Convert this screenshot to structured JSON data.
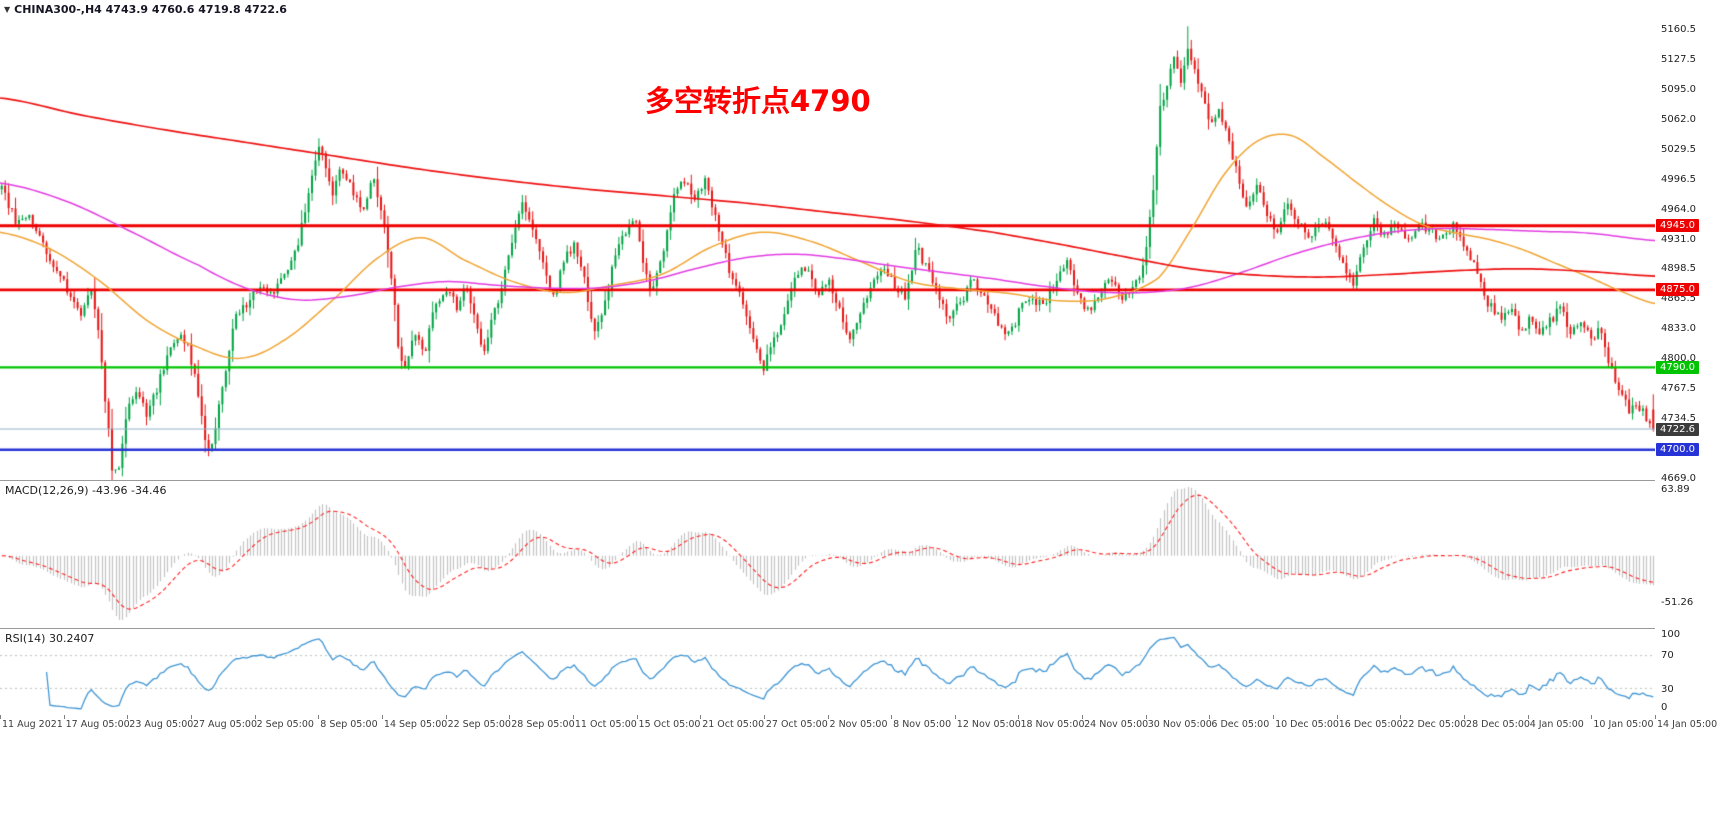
{
  "header": {
    "symbol_info": "CHINA300-,H4 4743.9 4760.6 4719.8 4722.6",
    "collapse_icon": "▼"
  },
  "main": {
    "annotation": {
      "text": "多空转折点4790",
      "color": "#ff0000"
    }
  },
  "macd": {
    "label": "MACD(12,26,9) -43.96 -34.46",
    "axis_ticks": [
      "63.89",
      "-51.26"
    ]
  },
  "rsi": {
    "label": "RSI(14) 30.2407",
    "axis_ticks": [
      "100",
      "70",
      "30",
      "0"
    ],
    "levels": [
      70,
      30
    ]
  },
  "x_axis": {
    "labels": [
      "11 Aug 2021",
      "17 Aug 05:00",
      "23 Aug 05:00",
      "27 Aug 05:00",
      "2 Sep 05:00",
      "8 Sep 05:00",
      "14 Sep 05:00",
      "22 Sep 05:00",
      "28 Sep 05:00",
      "11 Oct 05:00",
      "15 Oct 05:00",
      "21 Oct 05:00",
      "27 Oct 05:00",
      "2 Nov 05:00",
      "8 Nov 05:00",
      "12 Nov 05:00",
      "18 Nov 05:00",
      "24 Nov 05:00",
      "30 Nov 05:00",
      "6 Dec 05:00",
      "10 Dec 05:00",
      "16 Dec 05:00",
      "22 Dec 05:00",
      "28 Dec 05:00",
      "4 Jan 05:00",
      "10 Jan 05:00",
      "14 Jan 05:00"
    ]
  },
  "chart_data": {
    "type": "candlestick",
    "symbol": "CHINA300-",
    "timeframe": "H4",
    "ohlc_display": {
      "open": 4743.9,
      "high": 4760.6,
      "low": 4719.8,
      "close": 4722.6
    },
    "candle_count": 480,
    "y_axis_ticks": [
      "5160.5",
      "5127.5",
      "5095.0",
      "5062.0",
      "5029.5",
      "4996.5",
      "4964.0",
      "4931.0",
      "4898.5",
      "4865.5",
      "4833.0",
      "4800.0",
      "4767.5",
      "4734.5",
      "4702.0",
      "4669.0"
    ],
    "hlines": [
      {
        "value": 4945.0,
        "label": "4945.0",
        "color": "#ee0000",
        "width": 3.0
      },
      {
        "value": 4875.0,
        "label": "4875.0",
        "color": "#ee0000",
        "width": 2.8
      },
      {
        "value": 4790.0,
        "label": "4790.0",
        "color": "#00c400",
        "width": 2.2
      },
      {
        "value": 4700.0,
        "label": "4700.0",
        "color": "#2633d6",
        "width": 2.4
      }
    ],
    "price_line": {
      "value": 4722.6,
      "label": "4722.6",
      "line_color": "#8fb0c9"
    },
    "price_path": [
      [
        0,
        4985
      ],
      [
        0.008,
        4952
      ],
      [
        0.016,
        4958
      ],
      [
        0.025,
        4922
      ],
      [
        0.034,
        4898
      ],
      [
        0.042,
        4862
      ],
      [
        0.048,
        4850
      ],
      [
        0.054,
        4876
      ],
      [
        0.059,
        4830
      ],
      [
        0.063,
        4750
      ],
      [
        0.067,
        4678
      ],
      [
        0.071,
        4684
      ],
      [
        0.076,
        4748
      ],
      [
        0.082,
        4766
      ],
      [
        0.088,
        4738
      ],
      [
        0.094,
        4768
      ],
      [
        0.101,
        4806
      ],
      [
        0.108,
        4832
      ],
      [
        0.114,
        4806
      ],
      [
        0.119,
        4758
      ],
      [
        0.124,
        4700
      ],
      [
        0.128,
        4712
      ],
      [
        0.134,
        4772
      ],
      [
        0.141,
        4842
      ],
      [
        0.149,
        4862
      ],
      [
        0.157,
        4878
      ],
      [
        0.164,
        4868
      ],
      [
        0.171,
        4892
      ],
      [
        0.179,
        4922
      ],
      [
        0.186,
        4980
      ],
      [
        0.191,
        5032
      ],
      [
        0.195,
        5022
      ],
      [
        0.2,
        4978
      ],
      [
        0.205,
        5008
      ],
      [
        0.211,
        4992
      ],
      [
        0.218,
        4962
      ],
      [
        0.225,
        4995
      ],
      [
        0.232,
        4945
      ],
      [
        0.237,
        4872
      ],
      [
        0.241,
        4802
      ],
      [
        0.245,
        4788
      ],
      [
        0.25,
        4828
      ],
      [
        0.256,
        4806
      ],
      [
        0.262,
        4858
      ],
      [
        0.269,
        4876
      ],
      [
        0.276,
        4856
      ],
      [
        0.282,
        4880
      ],
      [
        0.287,
        4838
      ],
      [
        0.292,
        4802
      ],
      [
        0.297,
        4844
      ],
      [
        0.303,
        4880
      ],
      [
        0.31,
        4938
      ],
      [
        0.316,
        4972
      ],
      [
        0.322,
        4942
      ],
      [
        0.328,
        4902
      ],
      [
        0.334,
        4866
      ],
      [
        0.34,
        4906
      ],
      [
        0.347,
        4926
      ],
      [
        0.353,
        4886
      ],
      [
        0.359,
        4826
      ],
      [
        0.365,
        4856
      ],
      [
        0.371,
        4912
      ],
      [
        0.377,
        4936
      ],
      [
        0.384,
        4950
      ],
      [
        0.389,
        4902
      ],
      [
        0.394,
        4872
      ],
      [
        0.4,
        4912
      ],
      [
        0.407,
        4976
      ],
      [
        0.412,
        5002
      ],
      [
        0.419,
        4972
      ],
      [
        0.426,
        4996
      ],
      [
        0.431,
        4962
      ],
      [
        0.437,
        4922
      ],
      [
        0.443,
        4882
      ],
      [
        0.449,
        4862
      ],
      [
        0.455,
        4822
      ],
      [
        0.461,
        4790
      ],
      [
        0.467,
        4816
      ],
      [
        0.473,
        4840
      ],
      [
        0.48,
        4886
      ],
      [
        0.487,
        4900
      ],
      [
        0.494,
        4872
      ],
      [
        0.501,
        4882
      ],
      [
        0.507,
        4856
      ],
      [
        0.513,
        4816
      ],
      [
        0.519,
        4842
      ],
      [
        0.526,
        4876
      ],
      [
        0.533,
        4900
      ],
      [
        0.54,
        4882
      ],
      [
        0.547,
        4866
      ],
      [
        0.554,
        4920
      ],
      [
        0.561,
        4896
      ],
      [
        0.567,
        4870
      ],
      [
        0.574,
        4842
      ],
      [
        0.581,
        4862
      ],
      [
        0.588,
        4890
      ],
      [
        0.595,
        4866
      ],
      [
        0.602,
        4842
      ],
      [
        0.609,
        4822
      ],
      [
        0.616,
        4850
      ],
      [
        0.623,
        4870
      ],
      [
        0.63,
        4856
      ],
      [
        0.637,
        4880
      ],
      [
        0.644,
        4908
      ],
      [
        0.651,
        4872
      ],
      [
        0.658,
        4852
      ],
      [
        0.665,
        4870
      ],
      [
        0.672,
        4890
      ],
      [
        0.679,
        4866
      ],
      [
        0.686,
        4876
      ],
      [
        0.692,
        4908
      ],
      [
        0.697,
        4978
      ],
      [
        0.701,
        5068
      ],
      [
        0.705,
        5092
      ],
      [
        0.71,
        5132
      ],
      [
        0.714,
        5102
      ],
      [
        0.718,
        5136
      ],
      [
        0.722,
        5120
      ],
      [
        0.727,
        5086
      ],
      [
        0.732,
        5060
      ],
      [
        0.737,
        5076
      ],
      [
        0.742,
        5042
      ],
      [
        0.748,
        5002
      ],
      [
        0.754,
        4966
      ],
      [
        0.76,
        4990
      ],
      [
        0.766,
        4960
      ],
      [
        0.772,
        4936
      ],
      [
        0.778,
        4966
      ],
      [
        0.785,
        4950
      ],
      [
        0.792,
        4930
      ],
      [
        0.799,
        4950
      ],
      [
        0.806,
        4936
      ],
      [
        0.812,
        4906
      ],
      [
        0.818,
        4882
      ],
      [
        0.824,
        4920
      ],
      [
        0.83,
        4950
      ],
      [
        0.837,
        4936
      ],
      [
        0.844,
        4950
      ],
      [
        0.851,
        4930
      ],
      [
        0.858,
        4946
      ],
      [
        0.865,
        4940
      ],
      [
        0.872,
        4930
      ],
      [
        0.879,
        4944
      ],
      [
        0.886,
        4924
      ],
      [
        0.893,
        4896
      ],
      [
        0.9,
        4860
      ],
      [
        0.907,
        4846
      ],
      [
        0.914,
        4856
      ],
      [
        0.92,
        4830
      ],
      [
        0.926,
        4846
      ],
      [
        0.932,
        4826
      ],
      [
        0.938,
        4842
      ],
      [
        0.944,
        4856
      ],
      [
        0.95,
        4826
      ],
      [
        0.956,
        4842
      ],
      [
        0.962,
        4820
      ],
      [
        0.968,
        4832
      ],
      [
        0.974,
        4792
      ],
      [
        0.98,
        4762
      ],
      [
        0.986,
        4742
      ],
      [
        0.992,
        4748
      ],
      [
        1,
        4722.6
      ]
    ],
    "overlays": {
      "red_ma": [
        [
          0,
          5085
        ],
        [
          0.05,
          5066
        ],
        [
          0.1,
          5050
        ],
        [
          0.15,
          5036
        ],
        [
          0.2,
          5022
        ],
        [
          0.25,
          5008
        ],
        [
          0.3,
          4996
        ],
        [
          0.35,
          4986
        ],
        [
          0.4,
          4978
        ],
        [
          0.45,
          4970
        ],
        [
          0.5,
          4960
        ],
        [
          0.55,
          4950
        ],
        [
          0.6,
          4938
        ],
        [
          0.64,
          4925
        ],
        [
          0.68,
          4911
        ],
        [
          0.72,
          4898
        ],
        [
          0.76,
          4891
        ],
        [
          0.8,
          4889
        ],
        [
          0.84,
          4892
        ],
        [
          0.88,
          4896
        ],
        [
          0.92,
          4898
        ],
        [
          0.96,
          4895
        ],
        [
          1,
          4890
        ]
      ],
      "magenta_ma": [
        [
          0,
          4992
        ],
        [
          0.04,
          4972
        ],
        [
          0.08,
          4938
        ],
        [
          0.12,
          4902
        ],
        [
          0.15,
          4876
        ],
        [
          0.18,
          4864
        ],
        [
          0.21,
          4868
        ],
        [
          0.24,
          4878
        ],
        [
          0.27,
          4884
        ],
        [
          0.3,
          4880
        ],
        [
          0.33,
          4877
        ],
        [
          0.36,
          4877
        ],
        [
          0.39,
          4884
        ],
        [
          0.42,
          4898
        ],
        [
          0.45,
          4910
        ],
        [
          0.48,
          4914
        ],
        [
          0.51,
          4909
        ],
        [
          0.54,
          4901
        ],
        [
          0.57,
          4894
        ],
        [
          0.6,
          4887
        ],
        [
          0.63,
          4879
        ],
        [
          0.66,
          4873
        ],
        [
          0.69,
          4872
        ],
        [
          0.72,
          4878
        ],
        [
          0.75,
          4894
        ],
        [
          0.78,
          4913
        ],
        [
          0.81,
          4928
        ],
        [
          0.84,
          4938
        ],
        [
          0.87,
          4942
        ],
        [
          0.9,
          4941
        ],
        [
          0.93,
          4939
        ],
        [
          0.96,
          4937
        ],
        [
          1,
          4929
        ]
      ],
      "orange_ma": [
        [
          0,
          4938
        ],
        [
          0.03,
          4920
        ],
        [
          0.06,
          4885
        ],
        [
          0.09,
          4840
        ],
        [
          0.12,
          4812
        ],
        [
          0.145,
          4800
        ],
        [
          0.17,
          4818
        ],
        [
          0.2,
          4862
        ],
        [
          0.23,
          4912
        ],
        [
          0.255,
          4932
        ],
        [
          0.28,
          4908
        ],
        [
          0.31,
          4884
        ],
        [
          0.34,
          4872
        ],
        [
          0.37,
          4880
        ],
        [
          0.4,
          4892
        ],
        [
          0.43,
          4922
        ],
        [
          0.46,
          4938
        ],
        [
          0.49,
          4928
        ],
        [
          0.52,
          4906
        ],
        [
          0.55,
          4884
        ],
        [
          0.58,
          4876
        ],
        [
          0.61,
          4871
        ],
        [
          0.64,
          4863
        ],
        [
          0.67,
          4866
        ],
        [
          0.7,
          4888
        ],
        [
          0.72,
          4942
        ],
        [
          0.74,
          5002
        ],
        [
          0.76,
          5038
        ],
        [
          0.78,
          5044
        ],
        [
          0.8,
          5020
        ],
        [
          0.82,
          4992
        ],
        [
          0.84,
          4966
        ],
        [
          0.86,
          4946
        ],
        [
          0.88,
          4937
        ],
        [
          0.9,
          4930
        ],
        [
          0.92,
          4919
        ],
        [
          0.94,
          4904
        ],
        [
          0.96,
          4889
        ],
        [
          0.98,
          4873
        ],
        [
          1,
          4860
        ]
      ]
    },
    "style": {
      "candle_up": "#00a344",
      "candle_down": "#e61717",
      "ma_red": "#ee1111",
      "ma_magenta": "#e23ce2",
      "ma_orange": "#f0a432",
      "macd_hist": "#c3c3c3",
      "macd_signal": "#ff2222",
      "rsi_line": "#3f95d4",
      "rsi_levels": "#b9c4b9",
      "price_tag_bg": "#3c3c3c"
    }
  }
}
